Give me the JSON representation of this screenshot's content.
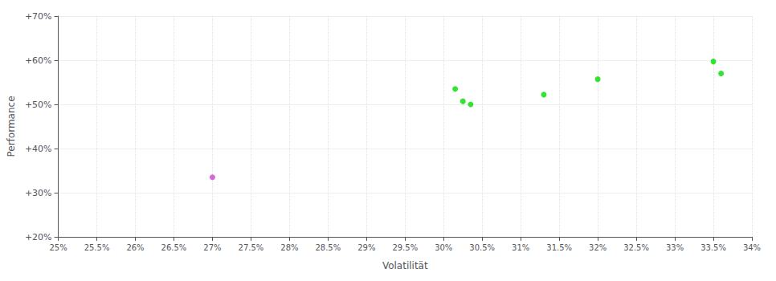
{
  "chart_data": {
    "type": "scatter",
    "xlabel": "Volatilität",
    "ylabel": "Performance",
    "series": [
      {
        "color": "#00dd00",
        "x": [
          0.3015,
          0.3025,
          0.3035,
          0.313,
          0.32,
          0.335,
          0.336
        ],
        "values": [
          0.535,
          0.507,
          0.5,
          0.522,
          0.557,
          0.597,
          0.57
        ]
      },
      {
        "color": "#cc44cc",
        "x": [
          0.27
        ],
        "values": [
          0.335
        ]
      }
    ],
    "xlim": [
      0.25,
      0.34
    ],
    "xticks": [
      {
        "value": 0.25,
        "label": "25%"
      },
      {
        "value": 0.255,
        "label": "25.5%"
      },
      {
        "value": 0.26,
        "label": "26%"
      },
      {
        "value": 0.265,
        "label": "26.5%"
      },
      {
        "value": 0.27,
        "label": "27%"
      },
      {
        "value": 0.275,
        "label": "27.5%"
      },
      {
        "value": 0.28,
        "label": "28%"
      },
      {
        "value": 0.285,
        "label": "28.5%"
      },
      {
        "value": 0.29,
        "label": "29%"
      },
      {
        "value": 0.295,
        "label": "29.5%"
      },
      {
        "value": 0.3,
        "label": "30%"
      },
      {
        "value": 0.305,
        "label": "30.5%"
      },
      {
        "value": 0.31,
        "label": "31%"
      },
      {
        "value": 0.315,
        "label": "31.5%"
      },
      {
        "value": 0.32,
        "label": "32%"
      },
      {
        "value": 0.325,
        "label": "32.5%"
      },
      {
        "value": 0.33,
        "label": "33%"
      },
      {
        "value": 0.335,
        "label": "33.5%"
      },
      {
        "value": 0.34,
        "label": "34%"
      }
    ],
    "ylim": [
      0.2,
      0.7
    ],
    "yticks": [
      {
        "value": 0.2,
        "label": "+20%"
      },
      {
        "value": 0.3,
        "label": "+30%"
      },
      {
        "value": 0.4,
        "label": "+40%"
      },
      {
        "value": 0.5,
        "label": "+50%"
      },
      {
        "value": 0.6,
        "label": "+60%"
      },
      {
        "value": 0.7,
        "label": "+70%"
      }
    ],
    "grid": true
  }
}
